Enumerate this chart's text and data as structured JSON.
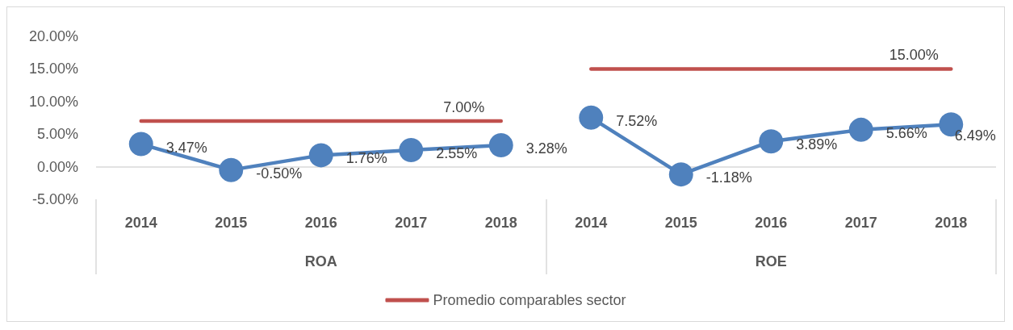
{
  "chart_data": {
    "type": "line",
    "categories": [
      "2014",
      "2015",
      "2016",
      "2017",
      "2018",
      "2014",
      "2015",
      "2016",
      "2017",
      "2018"
    ],
    "annotations": [
      "ROA",
      "ROE"
    ],
    "series": [
      {
        "color": "#4f81bd",
        "marker": "circle",
        "values": [
          3.47,
          -0.5,
          1.76,
          2.55,
          3.28,
          null,
          null,
          null,
          null,
          null
        ],
        "value_labels": [
          "3.47%",
          "-0.50%",
          "1.76%",
          "2.55%",
          "3.28%",
          null,
          null,
          null,
          null,
          null
        ]
      },
      {
        "color": "#4f81bd",
        "marker": "circle",
        "values": [
          null,
          null,
          null,
          null,
          null,
          7.52,
          -1.18,
          3.89,
          5.66,
          6.49
        ],
        "value_labels": [
          null,
          null,
          null,
          null,
          null,
          "7.52%",
          "-1.18%",
          "3.89%",
          "5.66%",
          "6.49%"
        ]
      },
      {
        "name": "Promedio comparables sector",
        "color": "#c0504d",
        "marker": "none",
        "values": [
          7,
          7,
          7,
          7,
          7,
          null,
          null,
          null,
          null,
          null
        ],
        "value_labels": [
          null,
          null,
          null,
          null,
          "7.00%",
          null,
          null,
          null,
          null,
          null
        ]
      },
      {
        "color": "#c0504d",
        "marker": "none",
        "values": [
          null,
          null,
          null,
          null,
          null,
          15,
          15,
          15,
          15,
          15
        ],
        "value_labels": [
          null,
          null,
          null,
          null,
          null,
          null,
          null,
          null,
          null,
          "15.00%"
        ]
      }
    ],
    "ylim": [
      -5,
      20
    ],
    "yticks": [
      {
        "value": -5,
        "label": "-5.00%"
      },
      {
        "value": 0,
        "label": "0.00%"
      },
      {
        "value": 5,
        "label": "5.00%"
      },
      {
        "value": 10,
        "label": "10.00%"
      },
      {
        "value": 15,
        "label": "15.00%"
      },
      {
        "value": 20,
        "label": "20.00%"
      }
    ],
    "ref_lines": [
      {
        "axis": "y",
        "value": 0,
        "color": "#d9d9d9"
      }
    ],
    "grid": false,
    "legend": "bottom",
    "line_style": "solid"
  }
}
